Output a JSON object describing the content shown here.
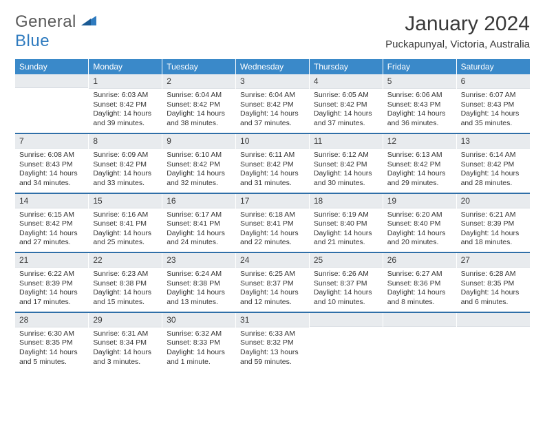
{
  "logo": {
    "text1": "General",
    "text2": "Blue"
  },
  "title": "January 2024",
  "location": "Puckapunyal, Victoria, Australia",
  "colors": {
    "header_bg": "#3a89c9",
    "header_fg": "#ffffff",
    "daynum_bg": "#e8ebee",
    "week_sep": "#2f6fa8",
    "text": "#333333",
    "logo_gray": "#5a5a5a",
    "logo_blue": "#2f7bbf"
  },
  "day_headers": [
    "Sunday",
    "Monday",
    "Tuesday",
    "Wednesday",
    "Thursday",
    "Friday",
    "Saturday"
  ],
  "weeks": [
    [
      {
        "n": "",
        "sunrise": "",
        "sunset": "",
        "daylight": ""
      },
      {
        "n": "1",
        "sunrise": "Sunrise: 6:03 AM",
        "sunset": "Sunset: 8:42 PM",
        "daylight": "Daylight: 14 hours and 39 minutes."
      },
      {
        "n": "2",
        "sunrise": "Sunrise: 6:04 AM",
        "sunset": "Sunset: 8:42 PM",
        "daylight": "Daylight: 14 hours and 38 minutes."
      },
      {
        "n": "3",
        "sunrise": "Sunrise: 6:04 AM",
        "sunset": "Sunset: 8:42 PM",
        "daylight": "Daylight: 14 hours and 37 minutes."
      },
      {
        "n": "4",
        "sunrise": "Sunrise: 6:05 AM",
        "sunset": "Sunset: 8:42 PM",
        "daylight": "Daylight: 14 hours and 37 minutes."
      },
      {
        "n": "5",
        "sunrise": "Sunrise: 6:06 AM",
        "sunset": "Sunset: 8:43 PM",
        "daylight": "Daylight: 14 hours and 36 minutes."
      },
      {
        "n": "6",
        "sunrise": "Sunrise: 6:07 AM",
        "sunset": "Sunset: 8:43 PM",
        "daylight": "Daylight: 14 hours and 35 minutes."
      }
    ],
    [
      {
        "n": "7",
        "sunrise": "Sunrise: 6:08 AM",
        "sunset": "Sunset: 8:43 PM",
        "daylight": "Daylight: 14 hours and 34 minutes."
      },
      {
        "n": "8",
        "sunrise": "Sunrise: 6:09 AM",
        "sunset": "Sunset: 8:42 PM",
        "daylight": "Daylight: 14 hours and 33 minutes."
      },
      {
        "n": "9",
        "sunrise": "Sunrise: 6:10 AM",
        "sunset": "Sunset: 8:42 PM",
        "daylight": "Daylight: 14 hours and 32 minutes."
      },
      {
        "n": "10",
        "sunrise": "Sunrise: 6:11 AM",
        "sunset": "Sunset: 8:42 PM",
        "daylight": "Daylight: 14 hours and 31 minutes."
      },
      {
        "n": "11",
        "sunrise": "Sunrise: 6:12 AM",
        "sunset": "Sunset: 8:42 PM",
        "daylight": "Daylight: 14 hours and 30 minutes."
      },
      {
        "n": "12",
        "sunrise": "Sunrise: 6:13 AM",
        "sunset": "Sunset: 8:42 PM",
        "daylight": "Daylight: 14 hours and 29 minutes."
      },
      {
        "n": "13",
        "sunrise": "Sunrise: 6:14 AM",
        "sunset": "Sunset: 8:42 PM",
        "daylight": "Daylight: 14 hours and 28 minutes."
      }
    ],
    [
      {
        "n": "14",
        "sunrise": "Sunrise: 6:15 AM",
        "sunset": "Sunset: 8:42 PM",
        "daylight": "Daylight: 14 hours and 27 minutes."
      },
      {
        "n": "15",
        "sunrise": "Sunrise: 6:16 AM",
        "sunset": "Sunset: 8:41 PM",
        "daylight": "Daylight: 14 hours and 25 minutes."
      },
      {
        "n": "16",
        "sunrise": "Sunrise: 6:17 AM",
        "sunset": "Sunset: 8:41 PM",
        "daylight": "Daylight: 14 hours and 24 minutes."
      },
      {
        "n": "17",
        "sunrise": "Sunrise: 6:18 AM",
        "sunset": "Sunset: 8:41 PM",
        "daylight": "Daylight: 14 hours and 22 minutes."
      },
      {
        "n": "18",
        "sunrise": "Sunrise: 6:19 AM",
        "sunset": "Sunset: 8:40 PM",
        "daylight": "Daylight: 14 hours and 21 minutes."
      },
      {
        "n": "19",
        "sunrise": "Sunrise: 6:20 AM",
        "sunset": "Sunset: 8:40 PM",
        "daylight": "Daylight: 14 hours and 20 minutes."
      },
      {
        "n": "20",
        "sunrise": "Sunrise: 6:21 AM",
        "sunset": "Sunset: 8:39 PM",
        "daylight": "Daylight: 14 hours and 18 minutes."
      }
    ],
    [
      {
        "n": "21",
        "sunrise": "Sunrise: 6:22 AM",
        "sunset": "Sunset: 8:39 PM",
        "daylight": "Daylight: 14 hours and 17 minutes."
      },
      {
        "n": "22",
        "sunrise": "Sunrise: 6:23 AM",
        "sunset": "Sunset: 8:38 PM",
        "daylight": "Daylight: 14 hours and 15 minutes."
      },
      {
        "n": "23",
        "sunrise": "Sunrise: 6:24 AM",
        "sunset": "Sunset: 8:38 PM",
        "daylight": "Daylight: 14 hours and 13 minutes."
      },
      {
        "n": "24",
        "sunrise": "Sunrise: 6:25 AM",
        "sunset": "Sunset: 8:37 PM",
        "daylight": "Daylight: 14 hours and 12 minutes."
      },
      {
        "n": "25",
        "sunrise": "Sunrise: 6:26 AM",
        "sunset": "Sunset: 8:37 PM",
        "daylight": "Daylight: 14 hours and 10 minutes."
      },
      {
        "n": "26",
        "sunrise": "Sunrise: 6:27 AM",
        "sunset": "Sunset: 8:36 PM",
        "daylight": "Daylight: 14 hours and 8 minutes."
      },
      {
        "n": "27",
        "sunrise": "Sunrise: 6:28 AM",
        "sunset": "Sunset: 8:35 PM",
        "daylight": "Daylight: 14 hours and 6 minutes."
      }
    ],
    [
      {
        "n": "28",
        "sunrise": "Sunrise: 6:30 AM",
        "sunset": "Sunset: 8:35 PM",
        "daylight": "Daylight: 14 hours and 5 minutes."
      },
      {
        "n": "29",
        "sunrise": "Sunrise: 6:31 AM",
        "sunset": "Sunset: 8:34 PM",
        "daylight": "Daylight: 14 hours and 3 minutes."
      },
      {
        "n": "30",
        "sunrise": "Sunrise: 6:32 AM",
        "sunset": "Sunset: 8:33 PM",
        "daylight": "Daylight: 14 hours and 1 minute."
      },
      {
        "n": "31",
        "sunrise": "Sunrise: 6:33 AM",
        "sunset": "Sunset: 8:32 PM",
        "daylight": "Daylight: 13 hours and 59 minutes."
      },
      {
        "n": "",
        "sunrise": "",
        "sunset": "",
        "daylight": ""
      },
      {
        "n": "",
        "sunrise": "",
        "sunset": "",
        "daylight": ""
      },
      {
        "n": "",
        "sunrise": "",
        "sunset": "",
        "daylight": ""
      }
    ]
  ]
}
